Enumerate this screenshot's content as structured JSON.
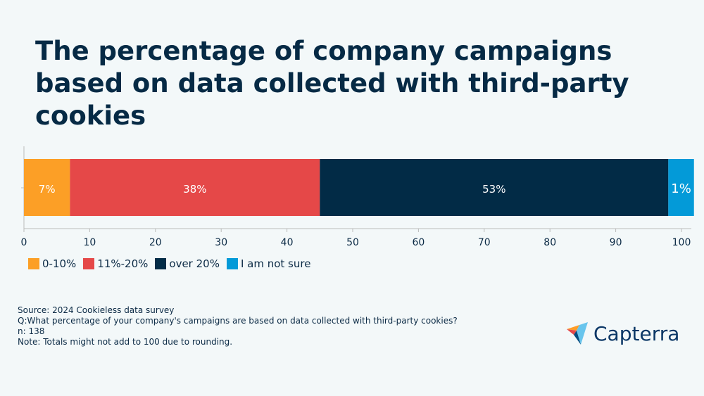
{
  "chart_data": {
    "type": "bar",
    "orientation": "horizontal-stacked",
    "title": "The percentage of company campaigns based on data collected with third-party cookies",
    "series": [
      {
        "name": "0-10%",
        "values": [
          7
        ],
        "label": "7%",
        "color": "#fc9f26"
      },
      {
        "name": "11%-20%",
        "values": [
          38
        ],
        "label": "38%",
        "color": "#e54848"
      },
      {
        "name": "over 20%",
        "values": [
          53
        ],
        "label": "53%",
        "color": "#022b46"
      },
      {
        "name": "I am not sure",
        "values": [
          1
        ],
        "label": "1%",
        "color": "#039ad8"
      }
    ],
    "xlim": [
      0,
      100
    ],
    "xticks": [
      0,
      10,
      20,
      30,
      40,
      50,
      60,
      70,
      80,
      90,
      100
    ],
    "grid": false,
    "legend_position": "bottom-left"
  },
  "notes": [
    "Source: 2024 Cookieless data survey",
    "Q:What percentage of your company's campaigns are based on data collected with third-party cookies?",
    "n: 138",
    "Note: Totals might not add to 100 due to rounding."
  ],
  "logo": {
    "text": "Capterra"
  }
}
